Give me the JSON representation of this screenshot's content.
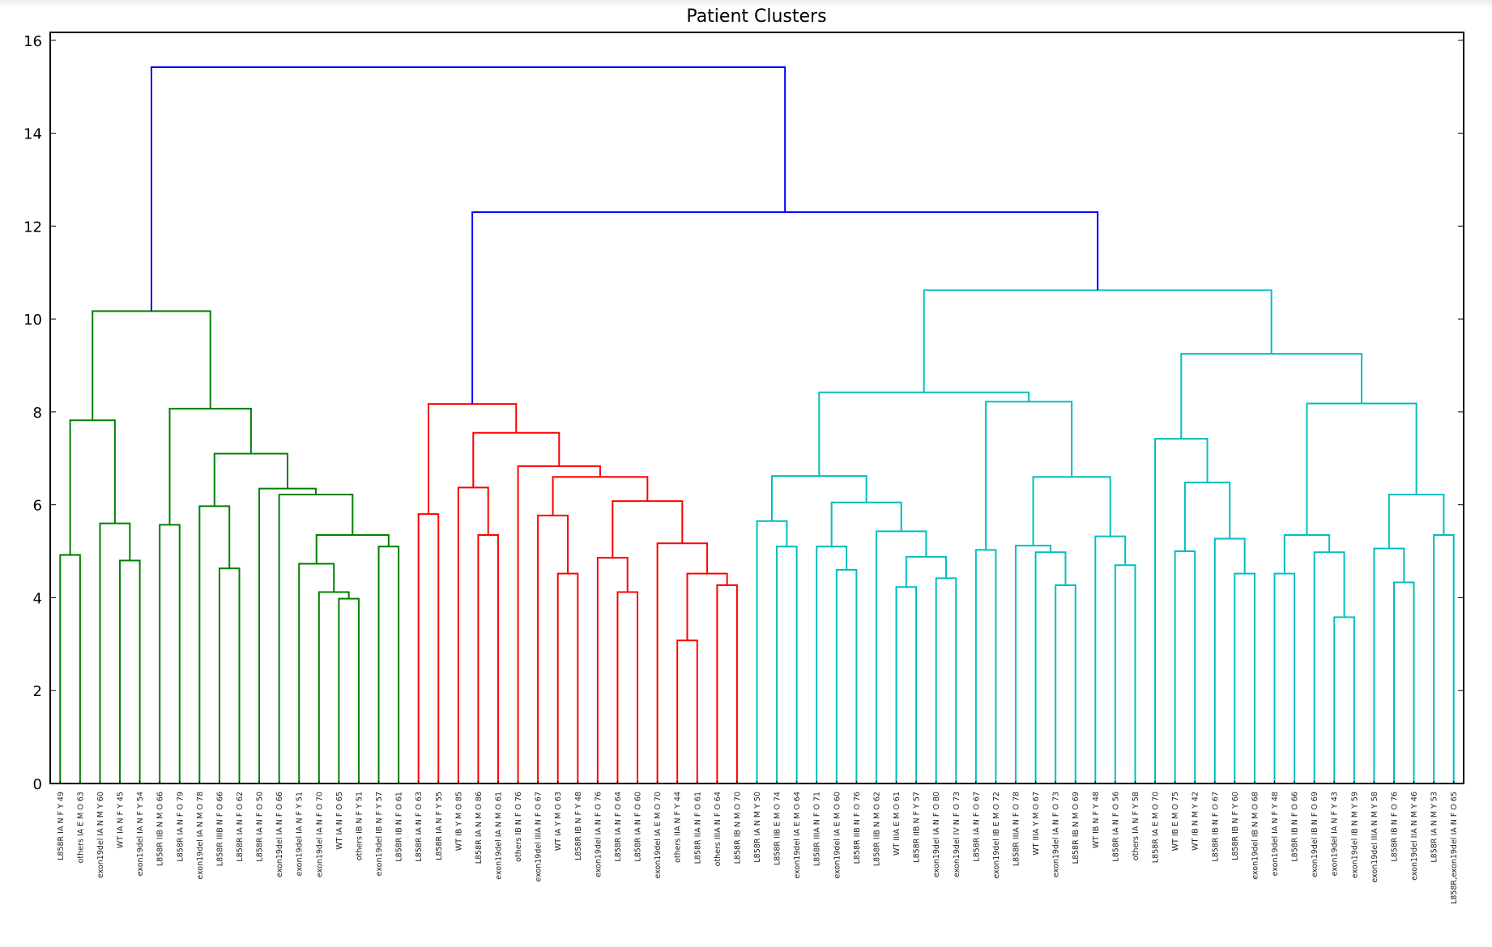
{
  "chart_data": {
    "type": "dendrogram",
    "title": "Patient Clusters",
    "xlabel": "",
    "ylabel": "",
    "ylim": [
      0,
      16.17
    ],
    "yticks": [
      0,
      2,
      4,
      6,
      8,
      10,
      12,
      14,
      16
    ],
    "grid": false,
    "colors": {
      "above_threshold": "#0000ff",
      "g": "#008000",
      "r": "#ff0000",
      "c": "#00bfbf",
      "axis": "#000000"
    },
    "leaves": [
      "L858R IA N F Y 49",
      "others IA E M O 63",
      "exon19del IA N M Y 60",
      "WT IA N F Y 45",
      "exon19del IA N F Y 54",
      "L858R IIB N M O 66",
      "L858R IA N F O 79",
      "exon19del IA N M O 78",
      "L858R IIIB N F O 66",
      "L858R IA N F O 62",
      "L858R IA N F O 50",
      "exon19del IA N F O 66",
      "exon19del IA N F Y 51",
      "exon19del IA N F O 70",
      "WT IA N F O 65",
      "others IB N F Y 51",
      "exon19del IB N F Y 57",
      "L858R IB N F O 61",
      "L858R IA N F O 63",
      "L858R IA N F Y 55",
      "WT IB Y M O 85",
      "L858R IA N M O 86",
      "exon19del IA N M O 61",
      "others IB N F O 76",
      "exon19del IIIA N F O 67",
      "WT IA Y M O 63",
      "L858R IB N F Y 48",
      "exon19del IA N F O 76",
      "L858R IA N F O 64",
      "L858R IA N F O 60",
      "exon19del IA E M O 70",
      "others IIA N F Y 44",
      "L858R IIA N F O 61",
      "others IIIA N F O 64",
      "L858R IB N M O 70",
      "L858R IA N M Y 50",
      "L858R IIB E M O 74",
      "exon19del IA E M O 64",
      "L858R IIIA N F O 71",
      "exon19del IA E M O 60",
      "L858R IIB N F O 76",
      "L858R IIB N M O 62",
      "WT IIIA E M O 61",
      "L858R IIB N F Y 57",
      "exon19del IA N F O 80",
      "exon19del IV N F O 73",
      "L858R IA N F O 67",
      "exon19del IB E M O 72",
      "L858R IIIA N F O 78",
      "WT IIIA Y M O 67",
      "exon19del IA N F O 73",
      "L858R IB N M O 69",
      "WT IB N F Y 48",
      "L858R IA N F O 56",
      "others IA N F Y 58",
      "L858R IA E M O 70",
      "WT IB E M O 75",
      "WT IB N M Y 42",
      "L858R IB N F O 67",
      "L858R IB N F Y 60",
      "exon19del IB N M O 68",
      "exon19del IA N F Y 48",
      "L858R IB N F O 66",
      "exon19del IB N F O 69",
      "exon19del IA N F Y 43",
      "exon19del IB N M Y 59",
      "exon19del IIIA N M Y 58",
      "L858R IB N F O 76",
      "exon19del IIA N M Y 46",
      "L858R IA N M Y 53",
      "L858R,exon19del IA N F O 65"
    ],
    "tree": {
      "h": 15.42,
      "c": "b",
      "k": [
        {
          "h": 10.17,
          "c": "g",
          "k": [
            {
              "h": 7.82,
              "c": "g",
              "k": [
                {
                  "h": 4.92,
                  "c": "g",
                  "k": [
                    0,
                    1
                  ]
                },
                {
                  "h": 5.6,
                  "c": "g",
                  "k": [
                    2,
                    {
                      "h": 4.8,
                      "c": "g",
                      "k": [
                        3,
                        4
                      ]
                    }
                  ]
                }
              ]
            },
            {
              "h": 8.07,
              "c": "g",
              "k": [
                {
                  "h": 5.57,
                  "c": "g",
                  "k": [
                    5,
                    6
                  ]
                },
                {
                  "h": 7.1,
                  "c": "g",
                  "k": [
                    {
                      "h": 5.97,
                      "c": "g",
                      "k": [
                        7,
                        {
                          "h": 4.63,
                          "c": "g",
                          "k": [
                            8,
                            9
                          ]
                        }
                      ]
                    },
                    {
                      "h": 6.35,
                      "c": "g",
                      "k": [
                        10,
                        {
                          "h": 6.22,
                          "c": "g",
                          "k": [
                            11,
                            {
                              "h": 5.35,
                              "c": "g",
                              "k": [
                                {
                                  "h": 4.73,
                                  "c": "g",
                                  "k": [
                                    12,
                                    {
                                      "h": 4.12,
                                      "c": "g",
                                      "k": [
                                        13,
                                        {
                                          "h": 3.98,
                                          "c": "g",
                                          "k": [
                                            14,
                                            15
                                          ]
                                        }
                                      ]
                                    }
                                  ]
                                },
                                {
                                  "h": 5.1,
                                  "c": "g",
                                  "k": [
                                    16,
                                    17
                                  ]
                                }
                              ]
                            }
                          ]
                        }
                      ]
                    }
                  ]
                }
              ]
            }
          ]
        },
        {
          "h": 12.3,
          "c": "b",
          "k": [
            {
              "h": 8.17,
              "c": "r",
              "k": [
                {
                  "h": 5.8,
                  "c": "r",
                  "k": [
                    18,
                    19
                  ]
                },
                {
                  "h": 7.55,
                  "c": "r",
                  "k": [
                    {
                      "h": 6.37,
                      "c": "r",
                      "k": [
                        20,
                        {
                          "h": 5.35,
                          "c": "r",
                          "k": [
                            21,
                            22
                          ]
                        }
                      ]
                    },
                    {
                      "h": 6.83,
                      "c": "r",
                      "k": [
                        23,
                        {
                          "h": 6.6,
                          "c": "r",
                          "k": [
                            {
                              "h": 5.77,
                              "c": "r",
                              "k": [
                                24,
                                {
                                  "h": 4.52,
                                  "c": "r",
                                  "k": [
                                    25,
                                    26
                                  ]
                                }
                              ]
                            },
                            {
                              "h": 6.08,
                              "c": "r",
                              "k": [
                                {
                                  "h": 4.86,
                                  "c": "r",
                                  "k": [
                                    27,
                                    {
                                      "h": 4.12,
                                      "c": "r",
                                      "k": [
                                        28,
                                        29
                                      ]
                                    }
                                  ]
                                },
                                {
                                  "h": 5.17,
                                  "c": "r",
                                  "k": [
                                    30,
                                    {
                                      "h": 4.52,
                                      "c": "r",
                                      "k": [
                                        {
                                          "h": 3.08,
                                          "c": "r",
                                          "k": [
                                            31,
                                            32
                                          ]
                                        },
                                        {
                                          "h": 4.27,
                                          "c": "r",
                                          "k": [
                                            33,
                                            34
                                          ]
                                        }
                                      ]
                                    }
                                  ]
                                }
                              ]
                            }
                          ]
                        }
                      ]
                    }
                  ]
                }
              ]
            },
            {
              "h": 10.62,
              "c": "c",
              "k": [
                {
                  "h": 8.42,
                  "c": "c",
                  "k": [
                    {
                      "h": 6.62,
                      "c": "c",
                      "k": [
                        {
                          "h": 5.65,
                          "c": "c",
                          "k": [
                            35,
                            {
                              "h": 5.1,
                              "c": "c",
                              "k": [
                                36,
                                37
                              ]
                            }
                          ]
                        },
                        {
                          "h": 6.05,
                          "c": "c",
                          "k": [
                            {
                              "h": 5.1,
                              "c": "c",
                              "k": [
                                38,
                                {
                                  "h": 4.6,
                                  "c": "c",
                                  "k": [
                                    39,
                                    40
                                  ]
                                }
                              ]
                            },
                            {
                              "h": 5.43,
                              "c": "c",
                              "k": [
                                41,
                                {
                                  "h": 4.88,
                                  "c": "c",
                                  "k": [
                                    {
                                      "h": 4.23,
                                      "c": "c",
                                      "k": [
                                        42,
                                        43
                                      ]
                                    },
                                    {
                                      "h": 4.42,
                                      "c": "c",
                                      "k": [
                                        44,
                                        45
                                      ]
                                    }
                                  ]
                                }
                              ]
                            }
                          ]
                        }
                      ]
                    },
                    {
                      "h": 8.22,
                      "c": "c",
                      "k": [
                        {
                          "h": 5.03,
                          "c": "c",
                          "k": [
                            46,
                            47
                          ]
                        },
                        {
                          "h": 6.6,
                          "c": "c",
                          "k": [
                            {
                              "h": 5.12,
                              "c": "c",
                              "k": [
                                48,
                                {
                                  "h": 4.98,
                                  "c": "c",
                                  "k": [
                                    49,
                                    {
                                      "h": 4.27,
                                      "c": "c",
                                      "k": [
                                        50,
                                        51
                                      ]
                                    }
                                  ]
                                }
                              ]
                            },
                            {
                              "h": 5.32,
                              "c": "c",
                              "k": [
                                52,
                                {
                                  "h": 4.7,
                                  "c": "c",
                                  "k": [
                                    53,
                                    54
                                  ]
                                }
                              ]
                            }
                          ]
                        }
                      ]
                    }
                  ]
                },
                {
                  "h": 9.25,
                  "c": "c",
                  "k": [
                    {
                      "h": 7.42,
                      "c": "c",
                      "k": [
                        55,
                        {
                          "h": 6.48,
                          "c": "c",
                          "k": [
                            {
                              "h": 5.0,
                              "c": "c",
                              "k": [
                                56,
                                57
                              ]
                            },
                            {
                              "h": 5.27,
                              "c": "c",
                              "k": [
                                58,
                                {
                                  "h": 4.52,
                                  "c": "c",
                                  "k": [
                                    59,
                                    60
                                  ]
                                }
                              ]
                            }
                          ]
                        }
                      ]
                    },
                    {
                      "h": 8.18,
                      "c": "c",
                      "k": [
                        {
                          "h": 5.35,
                          "c": "c",
                          "k": [
                            {
                              "h": 4.52,
                              "c": "c",
                              "k": [
                                61,
                                62
                              ]
                            },
                            {
                              "h": 4.98,
                              "c": "c",
                              "k": [
                                63,
                                {
                                  "h": 3.58,
                                  "c": "c",
                                  "k": [
                                    64,
                                    65
                                  ]
                                }
                              ]
                            }
                          ]
                        },
                        {
                          "h": 6.22,
                          "c": "c",
                          "k": [
                            {
                              "h": 5.06,
                              "c": "c",
                              "k": [
                                66,
                                {
                                  "h": 4.33,
                                  "c": "c",
                                  "k": [
                                    67,
                                    68
                                  ]
                                }
                              ]
                            },
                            {
                              "h": 5.35,
                              "c": "c",
                              "k": [
                                69,
                                70
                              ]
                            }
                          ]
                        }
                      ]
                    }
                  ]
                }
              ]
            }
          ]
        }
      ]
    }
  }
}
